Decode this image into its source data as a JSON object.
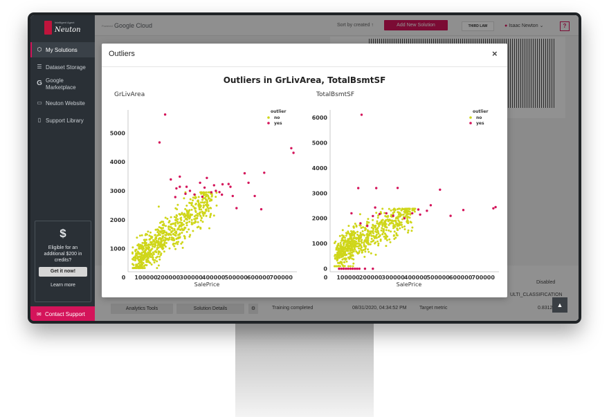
{
  "sidebar": {
    "brand_tagline": "Intelligent Agent",
    "brand_name": "Neuton",
    "items": [
      {
        "label": "My Solutions",
        "icon": "cube-icon"
      },
      {
        "label": "Dataset Storage",
        "icon": "layers-icon"
      },
      {
        "label": "Google Marketplace",
        "icon": "google-icon"
      },
      {
        "label": "Neuton Website",
        "icon": "monitor-icon"
      },
      {
        "label": "Support Library",
        "icon": "book-icon"
      }
    ],
    "credits": {
      "symbol": "$",
      "text": "Eligible for an additional $200 in credits?",
      "button": "Get it now!",
      "link": "Learn more"
    },
    "contact_label": "Contact Support"
  },
  "topbar": {
    "powered": "Powered",
    "google_cloud": "Google Cloud",
    "sort_label": "Sort by created ↑",
    "add_button": "Add New Solution",
    "third_law": "THIRD LAW",
    "user_name": "Isaac Newton",
    "help": "?"
  },
  "background": {
    "disabled": "Disabled",
    "multi_class": "ULTI_CLASSIFICATION",
    "training_completed": "Training completed",
    "training_date": "08/31/2020, 04:34:52 PM",
    "target_metric": "Target metric",
    "target_value": "0.8312",
    "analytics_button": "Analytics Tools",
    "details_button": "Solution Details"
  },
  "modal": {
    "title": "Outliers",
    "close": "×"
  },
  "colors": {
    "accent": "#d4145a",
    "no": "#cfd61a",
    "yes": "#d4145a"
  },
  "chart_data": {
    "title": "Outliers in GrLivArea, TotalBsmtSF",
    "legend_title": "outlier",
    "legend_items": [
      "no",
      "yes"
    ],
    "legend_placement": "top-right",
    "xlabel": "SalePrice",
    "charts": [
      {
        "type": "scatter",
        "title": "GrLivArea",
        "xlabel": "SalePrice",
        "ylabel": "",
        "xlim": [
          20000,
          770000
        ],
        "ylim": [
          200,
          5800
        ],
        "xticks": [
          "0",
          "100000",
          "200000",
          "300000",
          "400000",
          "500000",
          "600000",
          "700000"
        ],
        "yticks": [
          "1000",
          "2000",
          "3000",
          "4000",
          "5000"
        ],
        "series": [
          {
            "name": "yes",
            "points": [
              [
                184750,
                5642
              ],
              [
                160000,
                4676
              ],
              [
                745000,
                4476
              ],
              [
                755000,
                4316
              ],
              [
                625000,
                3627
              ],
              [
                555000,
                3279
              ],
              [
                582933,
                2822
              ],
              [
                611657,
                2364
              ],
              [
                538000,
                3608
              ],
              [
                440000,
                3228
              ],
              [
                466500,
                3238
              ],
              [
                475000,
                3140
              ],
              [
                402000,
                3194
              ],
              [
                437154,
                2868
              ],
              [
                426000,
                2956
              ],
              [
                485000,
                2822
              ],
              [
                501837,
                2402
              ],
              [
                410000,
                3000
              ],
              [
                370000,
                3447
              ],
              [
                340000,
                3279
              ],
              [
                250000,
                3493
              ],
              [
                210000,
                3395
              ],
              [
                235000,
                3086
              ],
              [
                280000,
                3140
              ],
              [
                315000,
                2872
              ],
              [
                230000,
                2784
              ],
              [
                250000,
                3140
              ],
              [
                275000,
                2900
              ],
              [
                295000,
                3000
              ],
              [
                360000,
                3112
              ],
              [
                390000,
                2950
              ],
              [
                350000,
                2800
              ]
            ]
          }
        ]
      },
      {
        "type": "scatter",
        "title": "TotalBsmtSF",
        "xlabel": "SalePrice",
        "ylabel": "",
        "xlim": [
          20000,
          770000
        ],
        "ylim": [
          -120,
          6300
        ],
        "xticks": [
          "0",
          "100000",
          "200000",
          "300000",
          "400000",
          "500000",
          "600000",
          "700000"
        ],
        "yticks": [
          "0",
          "1000",
          "2000",
          "3000",
          "4000",
          "5000",
          "6000"
        ],
        "series": [
          {
            "name": "yes",
            "points": [
              [
                160000,
                6110
              ],
              [
                145000,
                3200
              ],
              [
                225000,
                3200
              ],
              [
                320000,
                3206
              ],
              [
                508000,
                3138
              ],
              [
                755000,
                2444
              ],
              [
                745000,
                2396
              ],
              [
                611657,
                2330
              ],
              [
                555000,
                2100
              ],
              [
                467000,
                2520
              ],
              [
                412000,
                2350
              ],
              [
                385000,
                2200
              ],
              [
                350000,
                2000
              ],
              [
                300000,
                2100
              ],
              [
                220000,
                2430
              ],
              [
                240000,
                2170
              ],
              [
                270000,
                2200
              ],
              [
                210000,
                2090
              ],
              [
                115000,
                2200
              ],
              [
                185000,
                1700
              ],
              [
                155000,
                1800
              ],
              [
                60000,
                0
              ],
              [
                70000,
                0
              ],
              [
                80000,
                0
              ],
              [
                90000,
                0
              ],
              [
                100000,
                0
              ],
              [
                110000,
                0
              ],
              [
                120000,
                0
              ],
              [
                130000,
                0
              ],
              [
                140000,
                0
              ],
              [
                150000,
                0
              ],
              [
                175000,
                0
              ],
              [
                210000,
                0
              ],
              [
                420000,
                2150
              ],
              [
                450000,
                2300
              ]
            ]
          }
        ]
      }
    ]
  }
}
